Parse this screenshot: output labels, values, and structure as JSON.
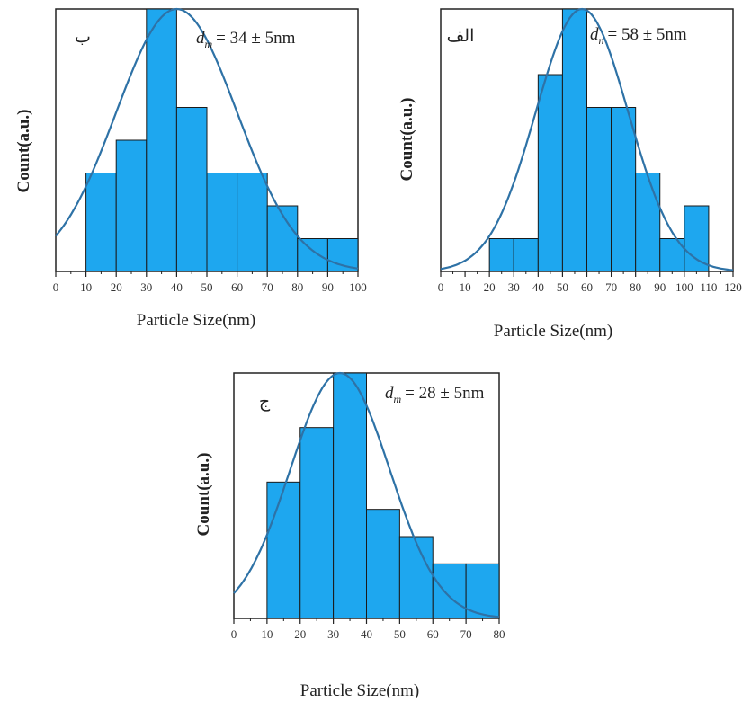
{
  "chart_data": [
    {
      "type": "bar",
      "panel_label": "ب",
      "annotation": {
        "symbol": "d",
        "sub": "m",
        "text": "= 34 ± 5nm"
      },
      "xlabel": "Particle Size(nm)",
      "ylabel": "Count(a.u.)",
      "xlim": [
        0,
        100
      ],
      "xticks": [
        0,
        10,
        20,
        30,
        40,
        50,
        60,
        70,
        80,
        90,
        100
      ],
      "bins": [
        [
          10,
          20
        ],
        [
          20,
          30
        ],
        [
          30,
          40
        ],
        [
          40,
          50
        ],
        [
          50,
          60
        ],
        [
          60,
          70
        ],
        [
          70,
          80
        ],
        [
          80,
          90
        ],
        [
          90,
          100
        ]
      ],
      "values": [
        3,
        4,
        8,
        5,
        3,
        3,
        2,
        1,
        1
      ],
      "ylim": [
        0,
        8
      ],
      "fit_curve": {
        "mean": 40,
        "sd": 20,
        "peak": 8
      },
      "colors": {
        "bar": "#1ea7ef",
        "curve": "#2e72a6"
      }
    },
    {
      "type": "bar",
      "panel_label": "الف",
      "annotation": {
        "symbol": "d",
        "sub": "n",
        "text": "= 58 ± 5nm"
      },
      "xlabel": "Particle Size(nm)",
      "ylabel": "Count(a.u.)",
      "xlim": [
        0,
        120
      ],
      "xticks": [
        0,
        10,
        20,
        30,
        40,
        50,
        60,
        70,
        80,
        90,
        100,
        110,
        120
      ],
      "bins": [
        [
          20,
          30
        ],
        [
          30,
          40
        ],
        [
          40,
          50
        ],
        [
          50,
          60
        ],
        [
          60,
          70
        ],
        [
          70,
          80
        ],
        [
          80,
          90
        ],
        [
          90,
          100
        ],
        [
          100,
          110
        ]
      ],
      "values": [
        1,
        1,
        6,
        8,
        5,
        5,
        3,
        1,
        2
      ],
      "ylim": [
        0,
        8
      ],
      "fit_curve": {
        "mean": 58,
        "sd": 19,
        "peak": 8
      },
      "colors": {
        "bar": "#1ea7ef",
        "curve": "#2e72a6"
      }
    },
    {
      "type": "bar",
      "panel_label": "ج",
      "annotation": {
        "symbol": "d",
        "sub": "m",
        "text": "= 28 ± 5nm"
      },
      "xlabel": "Particle Size(nm)",
      "ylabel": "Count(a.u.)",
      "xlim": [
        0,
        80
      ],
      "xticks": [
        0,
        10,
        20,
        30,
        40,
        50,
        60,
        70,
        80
      ],
      "bins": [
        [
          10,
          20
        ],
        [
          20,
          30
        ],
        [
          30,
          40
        ],
        [
          40,
          50
        ],
        [
          50,
          60
        ],
        [
          60,
          70
        ],
        [
          70,
          80
        ]
      ],
      "values": [
        5,
        7,
        9,
        4,
        3,
        2,
        2
      ],
      "ylim": [
        0,
        9
      ],
      "fit_curve": {
        "mean": 32,
        "sd": 15,
        "peak": 9
      },
      "colors": {
        "bar": "#1ea7ef",
        "curve": "#2e72a6"
      }
    }
  ]
}
